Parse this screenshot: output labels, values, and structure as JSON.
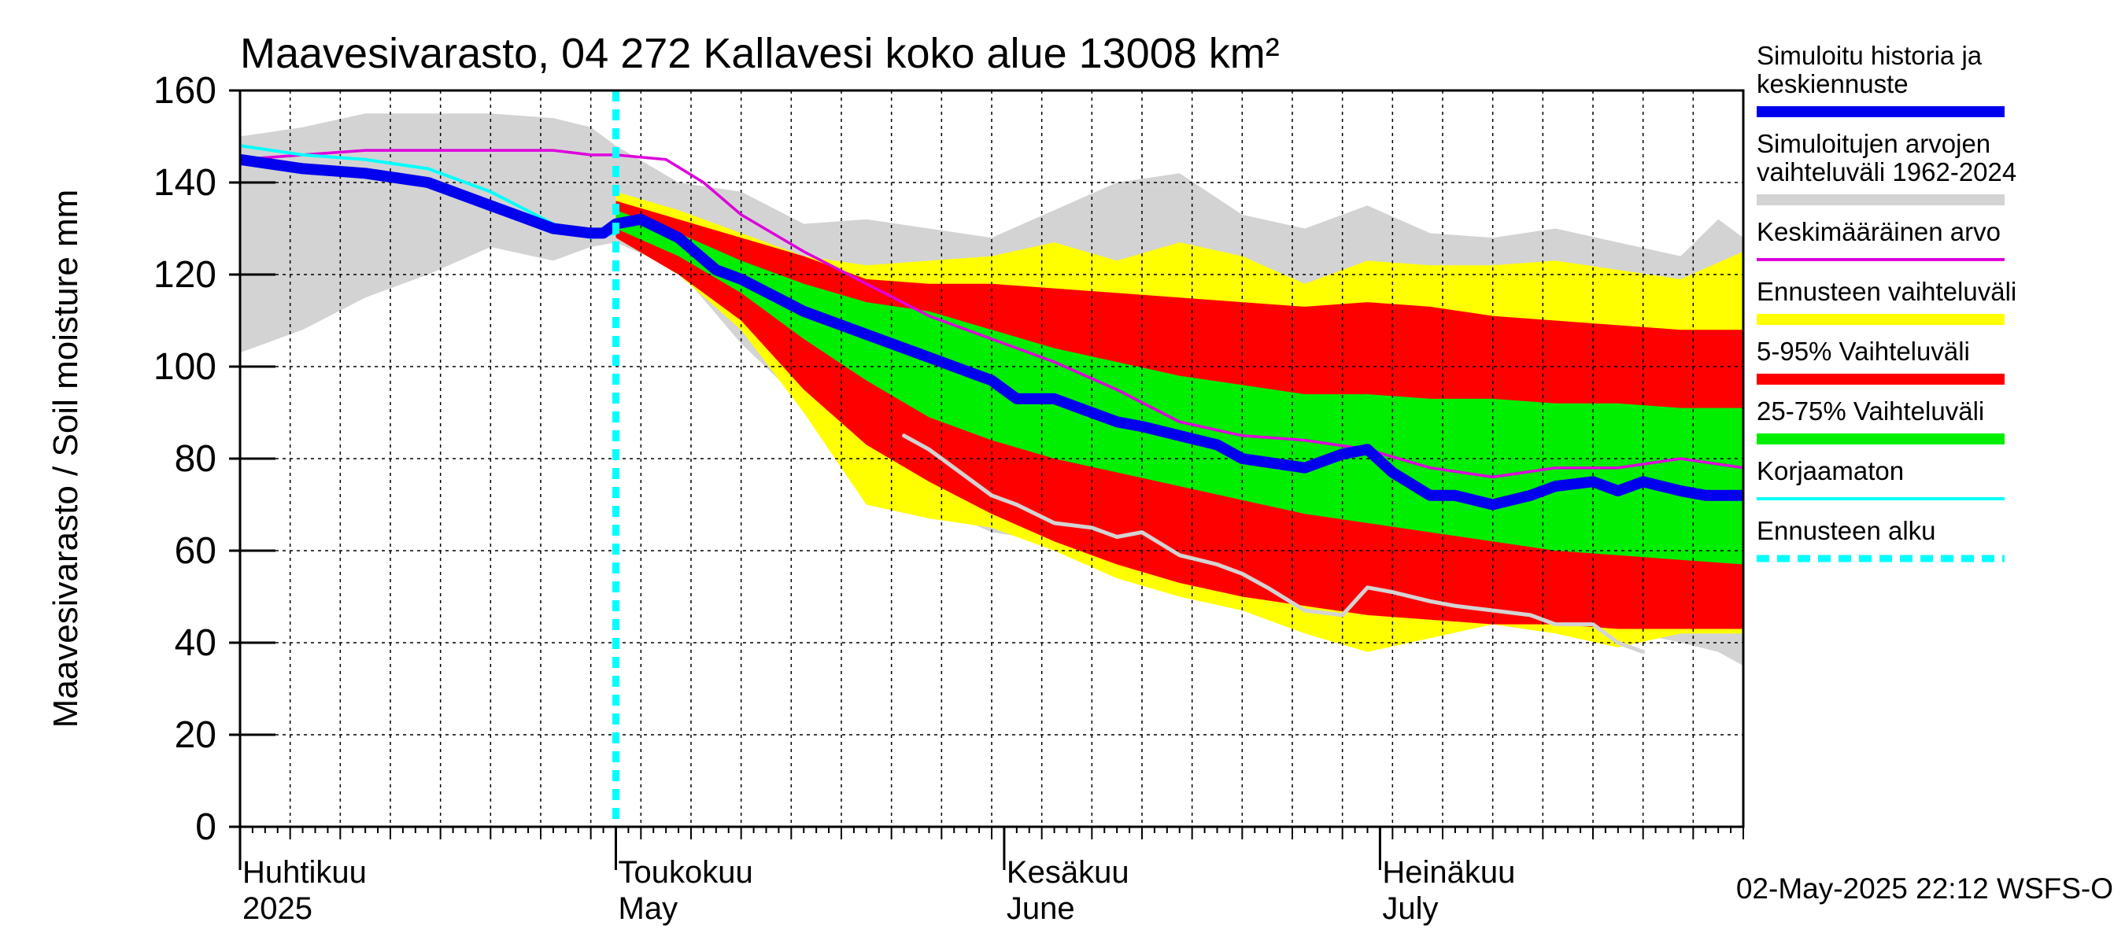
{
  "chart_data": {
    "type": "area",
    "title": "Maavesivarasto, 04 272 Kallavesi koko alue 13008 km²",
    "ylabel": "Maavesivarasto / Soil moisture   mm",
    "ylim": [
      0,
      160
    ],
    "yticks": [
      0,
      20,
      40,
      60,
      80,
      100,
      120,
      140,
      160
    ],
    "x_range_days": [
      0,
      120
    ],
    "forecast_start_day": 30,
    "months": [
      {
        "fi": "Huhtikuu",
        "en": "2025",
        "day": 0
      },
      {
        "fi": "Toukokuu",
        "en": "May",
        "day": 30
      },
      {
        "fi": "Kesäkuu",
        "en": "June",
        "day": 61
      },
      {
        "fi": "Heinäkuu",
        "en": "July",
        "day": 91
      }
    ],
    "timestamp": "02-May-2025 22:12 WSFS-O",
    "colors": {
      "history_range": "#d3d3d3",
      "forecast_range": "#ffff00",
      "p5_95": "#ff0000",
      "p25_75": "#00ee00",
      "median": "#0000ee",
      "mean": "#dd00dd",
      "uncorrected": "#00ffff",
      "forecast_start": "#00ffff",
      "min_line": "#d3d3d3"
    },
    "legend": [
      {
        "label": "Simuloitu historia ja\nkeskiennuste",
        "color": "#0000ee",
        "style": "thick"
      },
      {
        "label": "Simuloitujen arvojen\nvaihteluväli 1962-2024",
        "color": "#d3d3d3",
        "style": "thick"
      },
      {
        "label": "Keskimääräinen arvo",
        "color": "#dd00dd",
        "style": "thin"
      },
      {
        "label": "Ennusteen vaihteluväli",
        "color": "#ffff00",
        "style": "thick"
      },
      {
        "label": "5-95% Vaihteluväli",
        "color": "#ff0000",
        "style": "thick"
      },
      {
        "label": "25-75% Vaihteluväli",
        "color": "#00ee00",
        "style": "thick"
      },
      {
        "label": "Korjaamaton",
        "color": "#00ffff",
        "style": "thin"
      },
      {
        "label": "Ennusteen alku",
        "color": "#00ffff",
        "style": "dashed"
      }
    ],
    "series": {
      "history_range": {
        "x": [
          0,
          5,
          10,
          15,
          20,
          25,
          28,
          30,
          35,
          40,
          45,
          50,
          55,
          60,
          65,
          70,
          75,
          80,
          85,
          90,
          95,
          100,
          105,
          110,
          115,
          118,
          120
        ],
        "upper": [
          150,
          152,
          155,
          155,
          155,
          154,
          152,
          148,
          140,
          138,
          131,
          132,
          130,
          128,
          134,
          140,
          142,
          133,
          130,
          135,
          129,
          128,
          130,
          127,
          124,
          132,
          128
        ],
        "lower": [
          103,
          108,
          115,
          120,
          126,
          123,
          126,
          127,
          121,
          105,
          92,
          82,
          70,
          64,
          62,
          60,
          57,
          52,
          50,
          44,
          47,
          48,
          45,
          43,
          40,
          38,
          35
        ]
      },
      "forecast_range": {
        "x": [
          30,
          35,
          40,
          45,
          50,
          55,
          60,
          65,
          70,
          75,
          80,
          85,
          90,
          95,
          100,
          105,
          110,
          115,
          120
        ],
        "upper": [
          138,
          134,
          129,
          124,
          122,
          123,
          124,
          127,
          123,
          127,
          124,
          118,
          123,
          122,
          122,
          123,
          121,
          119,
          125
        ],
        "lower": [
          128,
          120,
          108,
          90,
          70,
          67,
          65,
          60,
          54,
          50,
          47,
          42,
          38,
          41,
          44,
          42,
          39,
          42,
          42
        ]
      },
      "p5_95": {
        "x": [
          30,
          35,
          40,
          45,
          50,
          55,
          60,
          65,
          70,
          75,
          80,
          85,
          90,
          95,
          100,
          105,
          110,
          115,
          120
        ],
        "upper": [
          136,
          132,
          128,
          124,
          119,
          118,
          118,
          117,
          116,
          115,
          114,
          113,
          114,
          113,
          111,
          110,
          109,
          108,
          108
        ],
        "lower": [
          128,
          120,
          110,
          95,
          83,
          75,
          68,
          62,
          57,
          53,
          50,
          48,
          46,
          45,
          44,
          44,
          43,
          43,
          43
        ]
      },
      "p25_75": {
        "x": [
          30,
          35,
          40,
          45,
          50,
          55,
          60,
          65,
          70,
          75,
          80,
          85,
          90,
          95,
          100,
          105,
          110,
          115,
          120
        ],
        "upper": [
          134,
          129,
          123,
          118,
          114,
          112,
          108,
          104,
          101,
          98,
          96,
          94,
          94,
          93,
          93,
          92,
          92,
          91,
          91
        ],
        "lower": [
          130,
          124,
          116,
          106,
          97,
          89,
          84,
          80,
          77,
          74,
          71,
          68,
          66,
          64,
          62,
          60,
          59,
          58,
          57
        ]
      },
      "median": {
        "x": [
          0,
          5,
          10,
          15,
          20,
          25,
          28,
          29,
          30,
          32,
          35,
          38,
          40,
          45,
          50,
          55,
          60,
          62,
          65,
          68,
          70,
          72,
          75,
          78,
          80,
          85,
          88,
          90,
          92,
          95,
          97,
          100,
          103,
          105,
          108,
          110,
          112,
          115,
          117,
          120
        ],
        "y": [
          145,
          143,
          142,
          140,
          135,
          130,
          129,
          129,
          131,
          132,
          128,
          121,
          119,
          112,
          107,
          102,
          97,
          93,
          93,
          90,
          88,
          87,
          85,
          83,
          80,
          78,
          81,
          82,
          77,
          72,
          72,
          70,
          72,
          74,
          75,
          73,
          75,
          73,
          72,
          72
        ]
      },
      "mean": {
        "x": [
          0,
          5,
          10,
          15,
          20,
          25,
          28,
          30,
          34,
          37,
          40,
          45,
          50,
          55,
          60,
          65,
          70,
          75,
          80,
          85,
          90,
          95,
          100,
          105,
          110,
          115,
          120
        ],
        "y": [
          145,
          146,
          147,
          147,
          147,
          147,
          146,
          146,
          145,
          140,
          133,
          125,
          118,
          111,
          106,
          101,
          95,
          88,
          85,
          84,
          82,
          78,
          76,
          78,
          78,
          80,
          78
        ]
      },
      "uncorrected": {
        "x": [
          0,
          5,
          10,
          15,
          20,
          25,
          28,
          30
        ],
        "y": [
          148,
          146,
          145,
          143,
          138,
          131,
          128,
          129
        ]
      },
      "min_line": {
        "x": [
          53,
          55,
          57,
          60,
          62,
          65,
          68,
          70,
          72,
          75,
          78,
          80,
          82,
          85,
          88,
          90,
          92,
          95,
          97,
          100,
          103,
          105,
          108,
          110,
          112
        ],
        "y": [
          85,
          82,
          78,
          72,
          70,
          66,
          65,
          63,
          64,
          59,
          57,
          55,
          52,
          47,
          46,
          52,
          51,
          49,
          48,
          47,
          46,
          44,
          44,
          40,
          38
        ]
      }
    }
  }
}
